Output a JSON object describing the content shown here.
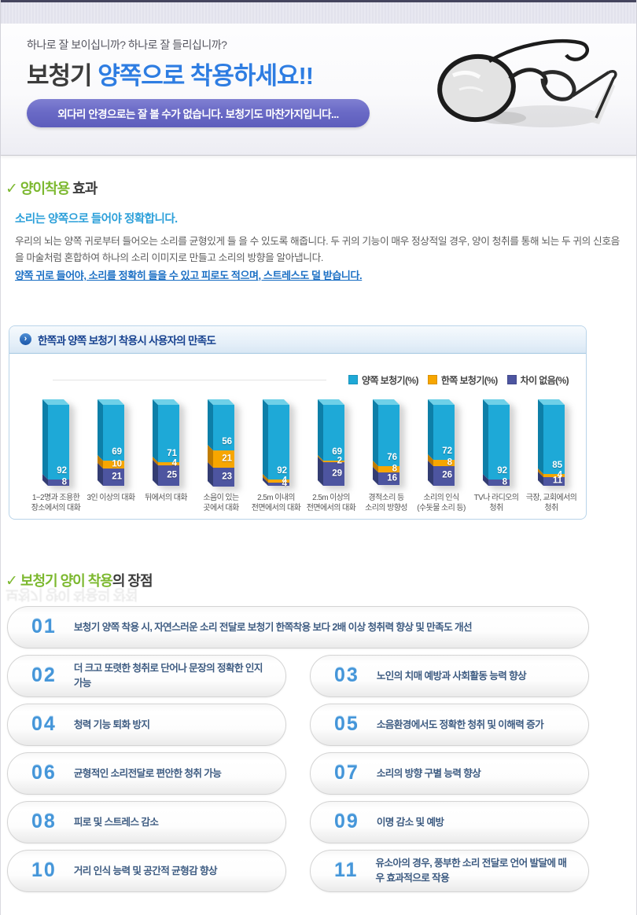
{
  "header": {
    "tagline": "하나로 잘 보이십니까?  하나로 잘 들리십니까?",
    "title_dark": "보청기 ",
    "title_blue": "양쪽으로 착용하세요!!",
    "banner_text": "외다리 안경으로는 잘 볼 수가 없습니다. 보청기도 마찬가지입니다...",
    "glasses_icon": "glasses-photo"
  },
  "section_effect": {
    "check": "✓",
    "heading_green": "양이착용",
    "heading_dark": " 효과",
    "subtitle": "소리는 양쪽으로 들어야 정확합니다.",
    "body": "우리의 뇌는 양쪽 귀로부터 들어오는 소리를 균형있게 들 을 수 있도록 해줍니다. 두 귀의 기능이 매우 정상적일 경우, 양이 청취를 통해 뇌는 두 귀의 신호음을 마술처럼 혼합하여 하나의 소리 이미지로 만들고 소리의 방향을 알아냅니다.",
    "body_highlight": "양쪽 귀로 들어야, 소리를 정확히 들을 수 있고 피로도 적으며, 스트레스도 덜 받습니다."
  },
  "chart_box": {
    "bullet_icon": "arrow-bullet-icon",
    "title": "한쪽과 양쪽 보청기 착용시 사용자의 만족도"
  },
  "chart_data": {
    "type": "bar",
    "stacked": true,
    "title": "한쪽과 양쪽 보청기 착용시 사용자의 만족도",
    "unit": "%",
    "legend_position": "top-right",
    "categories": [
      "1~2명과 조용한\n장소에서의 대화",
      "3인 이상의 대화",
      "뒤에서의 대화",
      "소음이 있는\n곳에서 대화",
      "2.5m 이내의\n전면에서의 대화",
      "2.5m 이상의\n전면에서의 대화",
      "경적소리 등\n소리의 방향성",
      "소리의 인식\n(수돗물 소리 등)",
      "TV나 라디오의\n청취",
      "극장, 교회에서의\n청취"
    ],
    "series": [
      {
        "name": "양쪽 보청기(%)",
        "color": "#1ea9d7",
        "values": [
          92,
          69,
          71,
          56,
          92,
          69,
          76,
          72,
          92,
          85
        ]
      },
      {
        "name": "한쪽 보청기(%)",
        "color": "#f7a600",
        "values": [
          0,
          10,
          4,
          21,
          4,
          2,
          8,
          8,
          0,
          4
        ]
      },
      {
        "name": "차이 없음(%)",
        "color": "#4d55a0",
        "values": [
          8,
          21,
          25,
          23,
          4,
          29,
          16,
          26,
          8,
          11
        ]
      }
    ],
    "colors": {
      "front": [
        "#1ea9d7",
        "#f7a600",
        "#4d55a0"
      ],
      "side": [
        "#0d7fa8",
        "#c07c00",
        "#333c72"
      ],
      "top": "#6ed0e8"
    }
  },
  "section_benefits": {
    "check": "✓",
    "heading_green": "보청기 양이 착용",
    "heading_dark": "의 장점",
    "items": [
      {
        "num": "01",
        "text": "보청기 양쪽 착용 시, 자연스러운 소리 전달로 보청기 한쪽착용 보다 2배 이상 청취력 향상 및 만족도 개선"
      },
      {
        "num": "02",
        "text": "더 크고 또렷한 청취로 단어나 문장의 정확한 인지 가능"
      },
      {
        "num": "03",
        "text": "노인의 치매 예방과 사회활동 능력 향상"
      },
      {
        "num": "04",
        "text": "청력 기능 퇴화 방지"
      },
      {
        "num": "05",
        "text": "소음환경에서도 정확한 청취 및 이해력 증가"
      },
      {
        "num": "06",
        "text": "균형적인 소리전달로 편안한 청취 가능"
      },
      {
        "num": "07",
        "text": "소리의 방향 구별 능력 향상"
      },
      {
        "num": "08",
        "text": "피로 및 스트레스 감소"
      },
      {
        "num": "09",
        "text": "이명 감소 및 예방"
      },
      {
        "num": "10",
        "text": "거리 인식 능력 및 공간적 균형감 향상"
      },
      {
        "num": "11",
        "text": "유소아의 경우, 풍부한 소리 전달로 언어 발달에 매우 효과적으로 작용"
      }
    ]
  }
}
